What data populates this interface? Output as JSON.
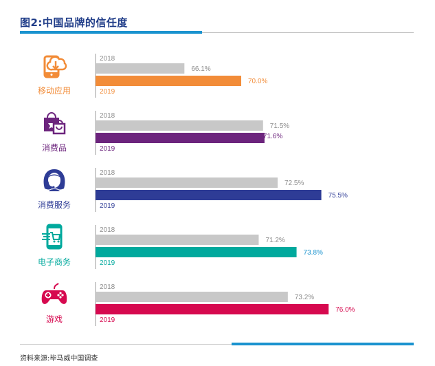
{
  "title": "图2:中国品牌的信任度",
  "source": "资料来源:毕马威中国调查",
  "chart_data": {
    "type": "bar",
    "orientation": "horizontal",
    "title": "图2:中国品牌的信任度",
    "xlim": [
      60,
      80
    ],
    "grid": false,
    "series_names": [
      "2018",
      "2019"
    ],
    "categories": [
      {
        "name": "移动应用",
        "icon": "mobile-app-cloud-icon",
        "color": "#f28c38",
        "label_color": "#f28c38",
        "values": [
          66.1,
          70.0
        ],
        "labels": [
          "66.1%",
          "70.0%"
        ],
        "label_2019_color": "#f28c38"
      },
      {
        "name": "消费品",
        "icon": "shopping-bags-icon",
        "color": "#6c247d",
        "label_color": "#6c247d",
        "values": [
          71.5,
          71.6
        ],
        "labels": [
          "71.5%",
          "71.6%"
        ],
        "label_2019_color": "#6c247d"
      },
      {
        "name": "消费服务",
        "icon": "customer-service-headset-icon",
        "color": "#2e3c96",
        "label_color": "#2e3c96",
        "values": [
          72.5,
          75.5
        ],
        "labels": [
          "72.5%",
          "75.5%"
        ],
        "label_2019_color": "#2e3c96"
      },
      {
        "name": "电子商务",
        "icon": "ecommerce-phone-cart-icon",
        "color": "#00a99d",
        "label_color": "#00a99d",
        "values": [
          71.2,
          73.8
        ],
        "labels": [
          "71.2%",
          "73.8%"
        ],
        "label_2019_color": "#1a93cf"
      },
      {
        "name": "游戏",
        "icon": "game-controller-icon",
        "color": "#d6094f",
        "label_color": "#d6094f",
        "values": [
          73.2,
          76.0
        ],
        "labels": [
          "73.2%",
          "76.0%"
        ],
        "label_2019_color": "#d6094f"
      }
    ],
    "grey_color": "#c8c8c8"
  }
}
